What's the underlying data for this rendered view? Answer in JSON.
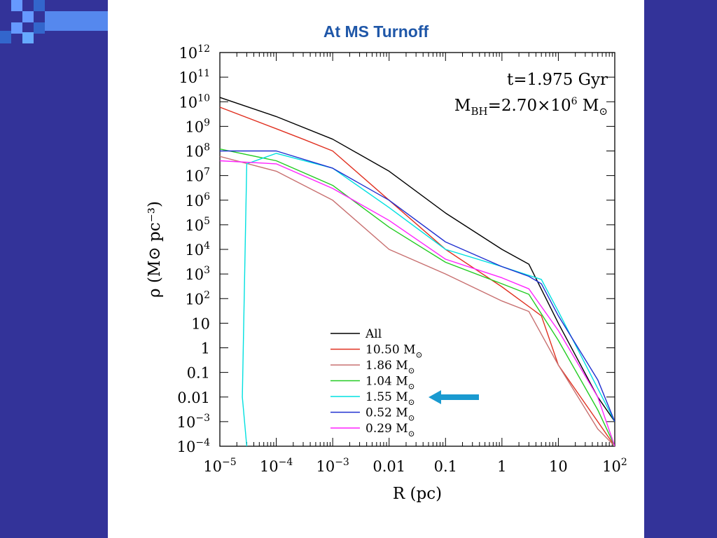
{
  "slide": {
    "title": "At MS Turnoff"
  },
  "chart_data": {
    "type": "line",
    "title": "",
    "xlabel": "R (pc)",
    "ylabel": "ρ (M⊙ pc⁻³)",
    "xscale": "log",
    "yscale": "log",
    "xlim": [
      1e-05,
      100
    ],
    "ylim": [
      0.0001,
      1000000000000.0
    ],
    "x_ticks": [
      {
        "v": 1e-05,
        "base": "10",
        "exp": "−5"
      },
      {
        "v": 0.0001,
        "base": "10",
        "exp": "−4"
      },
      {
        "v": 0.001,
        "base": "10",
        "exp": "−3"
      },
      {
        "v": 0.01,
        "base": "0.01",
        "exp": ""
      },
      {
        "v": 0.1,
        "base": "0.1",
        "exp": ""
      },
      {
        "v": 1,
        "base": "1",
        "exp": ""
      },
      {
        "v": 10,
        "base": "10",
        "exp": ""
      },
      {
        "v": 100,
        "base": "10",
        "exp": "2"
      }
    ],
    "y_ticks": [
      {
        "v": 1000000000000.0,
        "base": "10",
        "exp": "12"
      },
      {
        "v": 100000000000.0,
        "base": "10",
        "exp": "11"
      },
      {
        "v": 10000000000.0,
        "base": "10",
        "exp": "10"
      },
      {
        "v": 1000000000.0,
        "base": "10",
        "exp": "9"
      },
      {
        "v": 100000000.0,
        "base": "10",
        "exp": "8"
      },
      {
        "v": 10000000.0,
        "base": "10",
        "exp": "7"
      },
      {
        "v": 1000000.0,
        "base": "10",
        "exp": "6"
      },
      {
        "v": 100000.0,
        "base": "10",
        "exp": "5"
      },
      {
        "v": 10000.0,
        "base": "10",
        "exp": "4"
      },
      {
        "v": 1000.0,
        "base": "10",
        "exp": "3"
      },
      {
        "v": 100,
        "base": "10",
        "exp": "2"
      },
      {
        "v": 10,
        "base": "10",
        "exp": ""
      },
      {
        "v": 1,
        "base": "1",
        "exp": ""
      },
      {
        "v": 0.1,
        "base": "0.1",
        "exp": ""
      },
      {
        "v": 0.01,
        "base": "0.01",
        "exp": ""
      },
      {
        "v": 0.001,
        "base": "10",
        "exp": "−3"
      },
      {
        "v": 0.0001,
        "base": "10",
        "exp": "−4"
      }
    ],
    "annotations": {
      "time": "t=1.975 Gyr",
      "bh_mass": {
        "prefix": "M",
        "sub": "BH",
        "value": "=2.70×10",
        "exp": "6",
        "unit": " M",
        "unit_sub": "⊙"
      }
    },
    "legend_position": "bottom-center",
    "highlight": {
      "series": "1.55 M⊙",
      "marker": "arrow",
      "color": "#1a9ad0"
    },
    "series": [
      {
        "name": "All",
        "label": "All",
        "sun": false,
        "color": "#000000",
        "x": [
          1e-05,
          0.0001,
          0.001,
          0.01,
          0.1,
          1,
          3,
          10,
          50,
          100
        ],
        "y": [
          15000000000.0,
          2500000000.0,
          300000000.0,
          15000000.0,
          300000.0,
          10000.0,
          2500.0,
          10,
          0.01,
          0.001
        ]
      },
      {
        "name": "10.50 M⊙",
        "label": "10.50 M",
        "sun": true,
        "color": "#e03020",
        "x": [
          1e-05,
          0.0001,
          0.0003,
          0.001,
          0.01,
          0.1,
          1,
          5,
          10,
          50,
          100
        ],
        "y": [
          6000000000.0,
          800000000.0,
          300000000.0,
          100000000.0,
          1000000.0,
          10000.0,
          300,
          20,
          0.2,
          0.001,
          0.0001
        ]
      },
      {
        "name": "1.86 M⊙",
        "label": "1.86 M",
        "sun": true,
        "color": "#c87070",
        "x": [
          1e-05,
          0.0001,
          0.001,
          0.01,
          0.1,
          1,
          3,
          10,
          50,
          100
        ],
        "y": [
          60000000.0,
          15000000.0,
          1000000.0,
          10000.0,
          1000.0,
          80,
          30,
          0.2,
          0.0005,
          0.0001
        ]
      },
      {
        "name": "1.04 M⊙",
        "label": "1.04 M",
        "sun": true,
        "color": "#22cc22",
        "x": [
          1e-05,
          0.0001,
          0.001,
          0.01,
          0.1,
          1,
          3,
          10,
          50,
          100
        ],
        "y": [
          120000000.0,
          40000000.0,
          4000000.0,
          80000.0,
          3000.0,
          400,
          150,
          2,
          0.003,
          0.0001
        ]
      },
      {
        "name": "1.55 M⊙",
        "label": "1.55 M",
        "sun": true,
        "color": "#00e0e0",
        "x": [
          3e-05,
          2.5e-05,
          3e-05,
          0.0001,
          0.001,
          0.01,
          0.1,
          1,
          5,
          10,
          100
        ],
        "y": [
          0.0001,
          0.01,
          30000000.0,
          80000000.0,
          20000000.0,
          500000.0,
          10000.0,
          2000.0,
          600,
          30,
          0.001
        ]
      },
      {
        "name": "0.52 M⊙",
        "label": "0.52 M",
        "sun": true,
        "color": "#2030d0",
        "x": [
          1e-05,
          0.0001,
          0.001,
          0.01,
          0.1,
          1,
          3,
          5,
          10,
          50,
          100
        ],
        "y": [
          100000000.0,
          100000000.0,
          20000000.0,
          1000000.0,
          20000.0,
          2000.0,
          800,
          400,
          20,
          0.05,
          0.001
        ]
      },
      {
        "name": "0.29 M⊙",
        "label": "0.29 M",
        "sun": true,
        "color": "#ff22ff",
        "x": [
          1e-05,
          0.0001,
          0.001,
          0.01,
          0.1,
          1,
          3,
          10,
          50,
          100
        ],
        "y": [
          40000000.0,
          30000000.0,
          3000000.0,
          150000.0,
          4000.0,
          700,
          250,
          5,
          0.01,
          0.0001
        ]
      }
    ]
  }
}
